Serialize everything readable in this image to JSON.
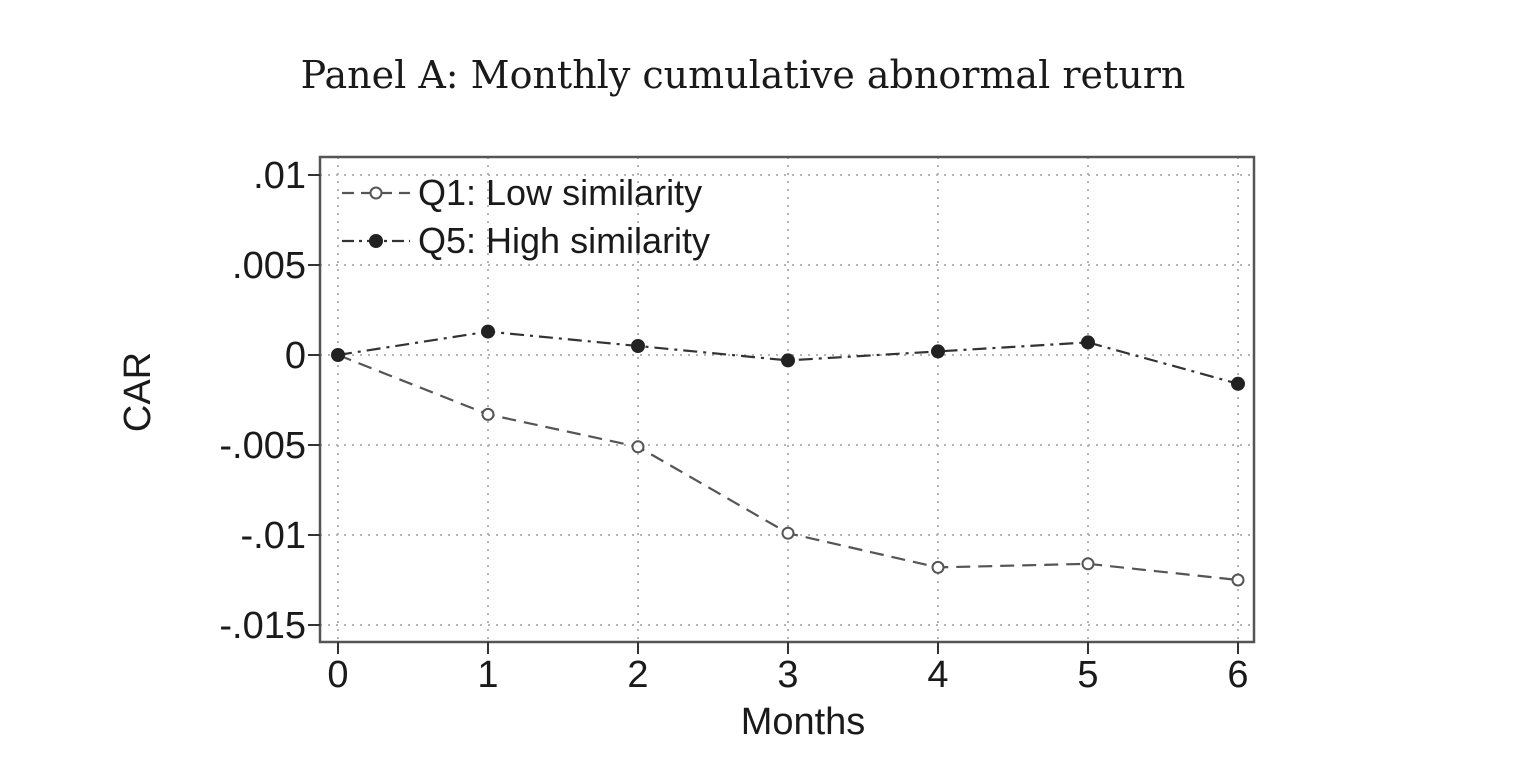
{
  "chart_data": {
    "type": "line",
    "title": "Panel A: Monthly cumulative abnormal return",
    "xlabel": "Months",
    "ylabel": "CAR",
    "x": [
      0,
      1,
      2,
      3,
      4,
      5,
      6
    ],
    "xlim": [
      0,
      6
    ],
    "ylim": [
      -0.0151,
      0.0101
    ],
    "x_ticks": [
      "0",
      "1",
      "2",
      "3",
      "4",
      "5",
      "6"
    ],
    "y_ticks": [
      {
        "value": 0.01,
        "label": ".01"
      },
      {
        "value": 0.005,
        "label": ".005"
      },
      {
        "value": 0,
        "label": "0"
      },
      {
        "value": -0.005,
        "label": "-.005"
      },
      {
        "value": -0.01,
        "label": "-.01"
      },
      {
        "value": -0.015,
        "label": "-.015"
      }
    ],
    "grid": true,
    "legend_position": "top-left",
    "series": [
      {
        "name": "Q1: Low similarity",
        "values": [
          0,
          -0.0033,
          -0.0051,
          -0.0099,
          -0.0118,
          -0.0116,
          -0.0125
        ],
        "marker": "hollow-circle",
        "line_style": "dashed",
        "color": "#555555"
      },
      {
        "name": "Q5: High similarity",
        "values": [
          0,
          0.0013,
          0.0005,
          -0.0003,
          0.0002,
          0.0007,
          -0.0016
        ],
        "marker": "filled-circle",
        "line_style": "dash-dot",
        "color": "#333333"
      }
    ]
  }
}
